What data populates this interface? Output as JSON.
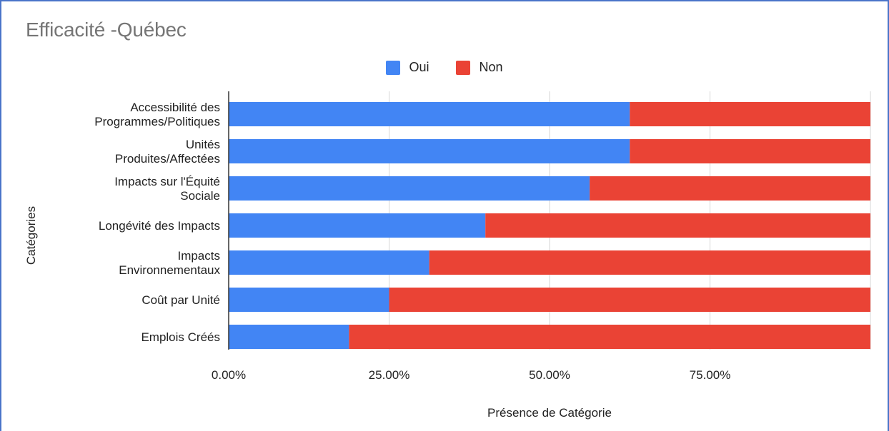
{
  "chart_data": {
    "type": "bar",
    "orientation": "horizontal",
    "stacked": "percent",
    "title": "Efficacité -Québec",
    "xlabel": "Présence de Catégorie",
    "ylabel": "Catégories",
    "xlim": [
      0,
      100
    ],
    "x_ticks": [
      "0.00%",
      "25.00%",
      "50.00%",
      "75.00%"
    ],
    "x_tick_values": [
      0,
      25,
      50,
      75
    ],
    "grid": true,
    "legend_position": "top",
    "categories": [
      [
        "Accessibilité des",
        "Programmes/Politiques"
      ],
      [
        "Unités",
        "Produites/Affectées"
      ],
      [
        "Impacts sur l'Équité",
        "Sociale"
      ],
      [
        "Longévité des Impacts"
      ],
      [
        "Impacts",
        "Environnementaux"
      ],
      [
        "Coût par Unité"
      ],
      [
        "Emplois Créés"
      ]
    ],
    "series": [
      {
        "name": "Oui",
        "color": "#4285f4",
        "values": [
          62.5,
          62.5,
          56.25,
          40,
          31.25,
          25,
          18.75
        ]
      },
      {
        "name": "Non",
        "color": "#ea4335",
        "values": [
          37.5,
          37.5,
          43.75,
          60,
          68.75,
          75,
          81.25
        ]
      }
    ]
  }
}
